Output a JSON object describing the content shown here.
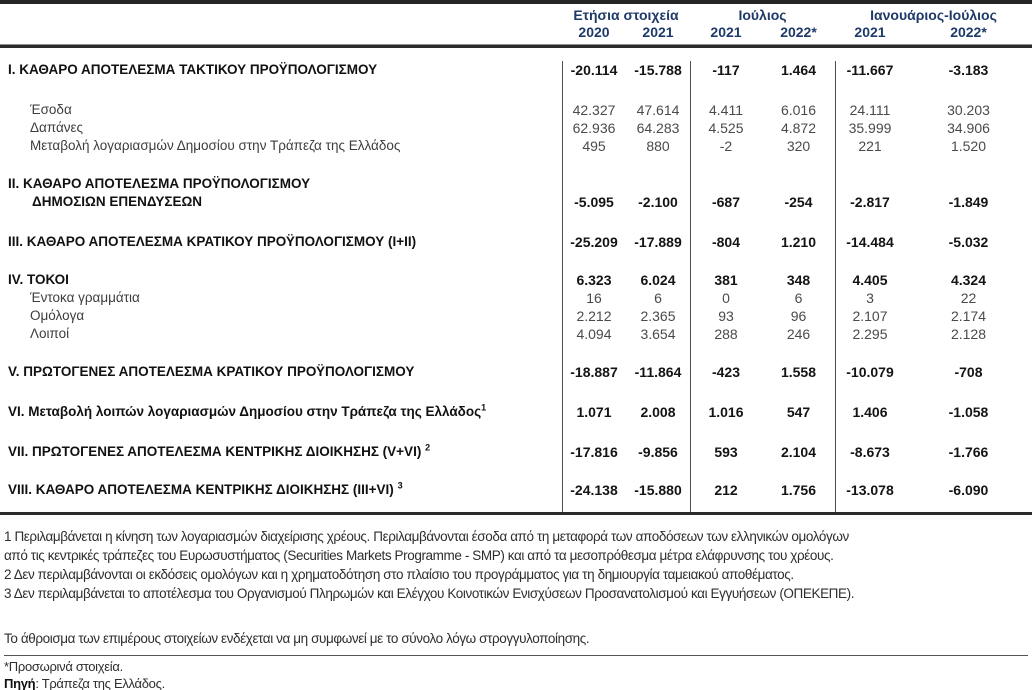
{
  "table": {
    "column_groups": [
      {
        "label": "Ετήσια στοιχεία"
      },
      {
        "label": "Ιούλιος"
      },
      {
        "label": "Ιανουάριος-Ιούλιος"
      }
    ],
    "year_headers": [
      "2020",
      "2021",
      "2021",
      "2022*",
      "2021",
      "2022*"
    ],
    "rows": [
      {
        "label": "I. ΚΑΘΑΡΟ ΑΠΟΤΕΛΕΣΜΑ  ΤΑΚΤΙΚΟΥ ΠΡΟΫΠΟΛΟΓΙΣΜΟΥ",
        "values": [
          "-20.114",
          "-15.788",
          "-117",
          "1.464",
          "-11.667",
          "-3.183"
        ]
      },
      {
        "label": "Έσοδα",
        "values": [
          "42.327",
          "47.614",
          "4.411",
          "6.016",
          "24.111",
          "30.203"
        ]
      },
      {
        "label": "Δαπάνες",
        "values": [
          "62.936",
          "64.283",
          "4.525",
          "4.872",
          "35.999",
          "34.906"
        ]
      },
      {
        "label": "Μεταβολή λογαριασμών Δημοσίου στην Τράπεζα της Ελλάδος",
        "values": [
          "495",
          "880",
          "-2",
          "320",
          "221",
          "1.520"
        ]
      },
      {
        "label": "II. ΚΑΘΑΡΟ ΑΠΟΤΕΛΕΣΜΑ ΠΡΟΫΠΟΛΟΓΙΣΜΟΥ",
        "label2": "ΔΗΜΟΣΙΩΝ ΕΠΕΝΔΥΣΕΩΝ",
        "values": [
          "-5.095",
          "-2.100",
          "-687",
          "-254",
          "-2.817",
          "-1.849"
        ]
      },
      {
        "label": "III. ΚΑΘΑΡΟ ΑΠΟΤΕΛΕΣΜΑ ΚΡΑΤΙΚΟΥ ΠΡΟΫΠΟΛΟΓΙΣΜΟΥ (I+II)",
        "values": [
          "-25.209",
          "-17.889",
          "-804",
          "1.210",
          "-14.484",
          "-5.032"
        ]
      },
      {
        "label": "IV. ΤΟΚΟΙ",
        "values": [
          "6.323",
          "6.024",
          "381",
          "348",
          "4.405",
          "4.324"
        ]
      },
      {
        "label": "Έντοκα γραμμάτια",
        "values": [
          "16",
          "6",
          "0",
          "6",
          "3",
          "22"
        ]
      },
      {
        "label": "Ομόλογα",
        "values": [
          "2.212",
          "2.365",
          "93",
          "96",
          "2.107",
          "2.174"
        ]
      },
      {
        "label": "Λοιποί",
        "values": [
          "4.094",
          "3.654",
          "288",
          "246",
          "2.295",
          "2.128"
        ]
      },
      {
        "label": "V. ΠΡΩΤΟΓΕΝΕΣ ΑΠΟΤΕΛΕΣΜΑ  ΚΡΑΤΙΚΟΥ ΠΡΟΫΠΟΛΟΓΙΣΜΟΥ",
        "values": [
          "-18.887",
          "-11.864",
          "-423",
          "1.558",
          "-10.079",
          "-708"
        ]
      },
      {
        "label": "VI. Μεταβολή λοιπών λογαριασμών Δημοσίου στην Τράπεζα της Ελλάδος",
        "sup": "1",
        "values": [
          "1.071",
          "2.008",
          "1.016",
          "547",
          "1.406",
          "-1.058"
        ]
      },
      {
        "label": "VII. ΠΡΩΤΟΓΕΝΕΣ ΑΠΟΤΕΛΕΣΜΑ ΚΕΝΤΡΙΚΗΣ ΔΙΟΙΚΗΣΗΣ (V+VI)",
        "sup": "2",
        "values": [
          "-17.816",
          "-9.856",
          "593",
          "2.104",
          "-8.673",
          "-1.766"
        ]
      },
      {
        "label": "VIII. ΚΑΘΑΡΟ ΑΠΟΤΕΛΕΣΜΑ ΚΕΝΤΡΙΚΗΣ ΔΙΟΙΚΗΣΗΣ (III+VI)",
        "sup": "3",
        "values": [
          "-24.138",
          "-15.880",
          "212",
          "1.756",
          "-13.078",
          "-6.090"
        ]
      }
    ]
  },
  "footnote_lines": [
    "1 Περιλαμβάνεται η κίνηση των λογαριασμών διαχείρισης χρέους. Περιλαμβάνονται έσοδα από τη μεταφορά των αποδόσεων των ελληνικών ομολόγων",
    "από τις κεντρικές τράπεζες του Ευρωσυστήματος (Securities Markets Programme - SMP) και από τα μεσοπρόθεσμα μέτρα ελάφρυνσης του χρέους.",
    "2 Δεν περιλαμβάνονται οι εκδόσεις ομολόγων και η χρηματοδότηση στο πλαίσιο του προγράμματος για τη δημιουργία ταμειακού αποθέματος.",
    "3 Δεν περιλαμβάνεται το αποτέλεσμα του Οργανισμού Πληρωμών και Ελέγχου Κοινοτικών Ενισχύσεων Προσανατολισμού και Εγγυήσεων (ΟΠΕΚΕΠΕ)."
  ],
  "rounding_note": "Το άθροισμα των επιμέρους στοιχείων ενδέχεται να μη συμφωνεί με το σύνολο λόγω στρογγυλοποίησης.",
  "provisional_note": "*Προσωρινά στοιχεία.",
  "source": {
    "label": "Πηγή",
    "text": ": Τράπεζα της Ελλάδος."
  },
  "colors": {
    "header_text": "#1f3a68",
    "rule_dark": "#2b2b2b",
    "body_text": "#141414",
    "sub_text": "#4a4a4a"
  }
}
